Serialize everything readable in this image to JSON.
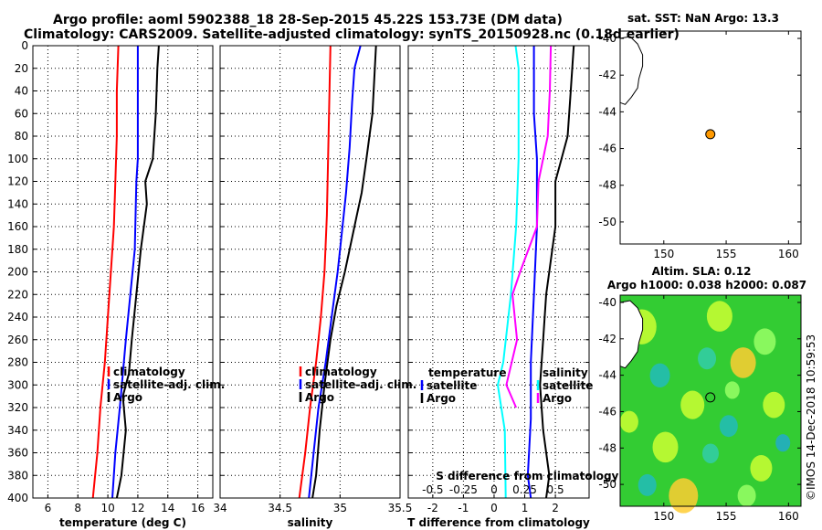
{
  "header": {
    "title_line1": "Argo profile: aoml 5902388_18 28-Sep-2015 45.22S 153.73E (DM data)",
    "title_line2": "Climatology: CARS2009. Satellite-adjusted climatology: synTS_20150928.nc (0.18d earlier)"
  },
  "colors": {
    "climatology": "#ff0000",
    "satellite": "#0000ff",
    "argo": "#000000",
    "salinity_clim": "#ff00ff",
    "salinity_sat": "#00ffff"
  },
  "legend": {
    "climatology": "climatology",
    "satellite_adj": "satellite-adj. clim.",
    "argo": "Argo",
    "temperature": "temperature",
    "salinity": "salinity",
    "satellite": "satellite"
  },
  "depth_ticks": [
    "0",
    "20",
    "40",
    "60",
    "80",
    "100",
    "120",
    "140",
    "160",
    "180",
    "200",
    "220",
    "240",
    "260",
    "280",
    "300",
    "320",
    "340",
    "360",
    "380",
    "400"
  ],
  "chart_data": [
    {
      "type": "line",
      "xlabel": "temperature (deg C)",
      "xlim": [
        5,
        17
      ],
      "xticks": [
        "6",
        "8",
        "10",
        "12",
        "14",
        "16"
      ],
      "ylabel": "depth",
      "ylim": [
        0,
        400
      ],
      "grid": true,
      "series": [
        {
          "name": "climatology",
          "color": "#ff0000",
          "points": [
            [
              10.7,
              0
            ],
            [
              10.6,
              40
            ],
            [
              10.6,
              80
            ],
            [
              10.5,
              120
            ],
            [
              10.4,
              160
            ],
            [
              10.2,
              200
            ],
            [
              10.0,
              240
            ],
            [
              9.8,
              280
            ],
            [
              9.5,
              320
            ],
            [
              9.3,
              360
            ],
            [
              9.0,
              400
            ]
          ]
        },
        {
          "name": "satellite-adj. clim.",
          "color": "#0000ff",
          "points": [
            [
              12.0,
              0
            ],
            [
              12.0,
              60
            ],
            [
              12.0,
              100
            ],
            [
              11.9,
              120
            ],
            [
              11.8,
              180
            ],
            [
              11.5,
              220
            ],
            [
              11.2,
              260
            ],
            [
              11.0,
              290
            ],
            [
              10.8,
              320
            ],
            [
              10.5,
              360
            ],
            [
              10.3,
              400
            ]
          ]
        },
        {
          "name": "Argo",
          "color": "#000000",
          "points": [
            [
              13.4,
              0
            ],
            [
              13.3,
              20
            ],
            [
              13.2,
              60
            ],
            [
              13.0,
              100
            ],
            [
              12.5,
              120
            ],
            [
              12.6,
              140
            ],
            [
              12.2,
              180
            ],
            [
              11.9,
              220
            ],
            [
              11.6,
              260
            ],
            [
              11.4,
              290
            ],
            [
              11.0,
              310
            ],
            [
              11.2,
              340
            ],
            [
              10.9,
              380
            ],
            [
              10.6,
              400
            ]
          ]
        }
      ]
    },
    {
      "type": "line",
      "xlabel": "salinity",
      "xlim": [
        34,
        35.5
      ],
      "xticks": [
        "34",
        "34.5",
        "35",
        "35.5"
      ],
      "ylabel": "depth",
      "ylim": [
        0,
        400
      ],
      "grid": true,
      "series": [
        {
          "name": "climatology",
          "color": "#ff0000",
          "points": [
            [
              34.92,
              0
            ],
            [
              34.91,
              50
            ],
            [
              34.9,
              100
            ],
            [
              34.89,
              150
            ],
            [
              34.87,
              200
            ],
            [
              34.84,
              240
            ],
            [
              34.8,
              280
            ],
            [
              34.75,
              320
            ],
            [
              34.71,
              360
            ],
            [
              34.66,
              400
            ]
          ]
        },
        {
          "name": "satellite-adj. clim.",
          "color": "#0000ff",
          "points": [
            [
              35.17,
              0
            ],
            [
              35.12,
              20
            ],
            [
              35.1,
              50
            ],
            [
              35.08,
              90
            ],
            [
              35.05,
              130
            ],
            [
              35.02,
              160
            ],
            [
              34.98,
              200
            ],
            [
              34.93,
              240
            ],
            [
              34.88,
              280
            ],
            [
              34.82,
              320
            ],
            [
              34.78,
              360
            ],
            [
              34.74,
              400
            ]
          ]
        },
        {
          "name": "Argo",
          "color": "#000000",
          "points": [
            [
              35.3,
              0
            ],
            [
              35.29,
              20
            ],
            [
              35.27,
              60
            ],
            [
              35.22,
              100
            ],
            [
              35.18,
              130
            ],
            [
              35.14,
              150
            ],
            [
              35.04,
              200
            ],
            [
              34.97,
              230
            ],
            [
              34.92,
              260
            ],
            [
              34.87,
              300
            ],
            [
              34.83,
              340
            ],
            [
              34.8,
              380
            ],
            [
              34.77,
              400
            ]
          ]
        }
      ]
    },
    {
      "type": "line",
      "xlabel": "T difference from climatology",
      "xlabel2": "S difference from climatology",
      "xlim": [
        -2.8,
        3.1
      ],
      "xticks": [
        "-2",
        "-1",
        "0",
        "1",
        "2"
      ],
      "xticks2": [
        "-0.5",
        "-0.25",
        "0",
        "0.25",
        "0.5"
      ],
      "ylabel": "depth",
      "ylim": [
        0,
        400
      ],
      "grid": true,
      "series": [
        {
          "name": "temperature satellite",
          "color": "#0000ff",
          "points": [
            [
              1.3,
              0
            ],
            [
              1.3,
              60
            ],
            [
              1.4,
              100
            ],
            [
              1.4,
              160
            ],
            [
              1.3,
              220
            ],
            [
              1.2,
              280
            ],
            [
              1.2,
              330
            ],
            [
              1.1,
              380
            ],
            [
              1.2,
              400
            ]
          ]
        },
        {
          "name": "temperature Argo",
          "color": "#000000",
          "points": [
            [
              2.6,
              0
            ],
            [
              2.5,
              40
            ],
            [
              2.4,
              80
            ],
            [
              2.0,
              120
            ],
            [
              2.0,
              160
            ],
            [
              1.7,
              220
            ],
            [
              1.6,
              260
            ],
            [
              1.5,
              300
            ],
            [
              1.6,
              340
            ],
            [
              1.8,
              380
            ],
            [
              1.7,
              400
            ]
          ]
        },
        {
          "name": "salinity satellite",
          "color": "#00ffff",
          "points": [
            [
              0.7,
              0
            ],
            [
              0.8,
              20
            ],
            [
              0.8,
              60
            ],
            [
              0.8,
              100
            ],
            [
              0.72,
              160
            ],
            [
              0.55,
              220
            ],
            [
              0.3,
              280
            ],
            [
              0.12,
              300
            ],
            [
              0.35,
              340
            ],
            [
              0.38,
              400
            ]
          ]
        },
        {
          "name": "salinity Argo",
          "color": "#ff00ff",
          "points": [
            [
              1.85,
              0
            ],
            [
              1.82,
              40
            ],
            [
              1.75,
              80
            ],
            [
              1.45,
              120
            ],
            [
              1.4,
              160
            ],
            [
              0.85,
              200
            ],
            [
              0.6,
              220
            ],
            [
              0.75,
              260
            ],
            [
              0.4,
              300
            ],
            [
              0.72,
              320
            ]
          ]
        }
      ]
    }
  ],
  "map1": {
    "title": "sat. SST: NaN Argo: 13.3",
    "yticks": [
      "-40",
      "-42",
      "-44",
      "-46",
      "-48",
      "-50"
    ],
    "xticks": [
      "150",
      "155",
      "160"
    ],
    "marker": {
      "lon": 153.73,
      "lat": -45.22
    }
  },
  "map2": {
    "title_line1": "Altim. SLA: 0.12",
    "title_line2": "Argo h1000: 0.038 h2000: 0.087",
    "yticks": [
      "-40",
      "-42",
      "-44",
      "-46",
      "-48",
      "-50"
    ],
    "xticks": [
      "150",
      "155",
      "160"
    ],
    "marker": {
      "lon": 153.73,
      "lat": -45.22
    }
  },
  "watermark": "©IMOS 14-Dec-2018 10:59:53"
}
